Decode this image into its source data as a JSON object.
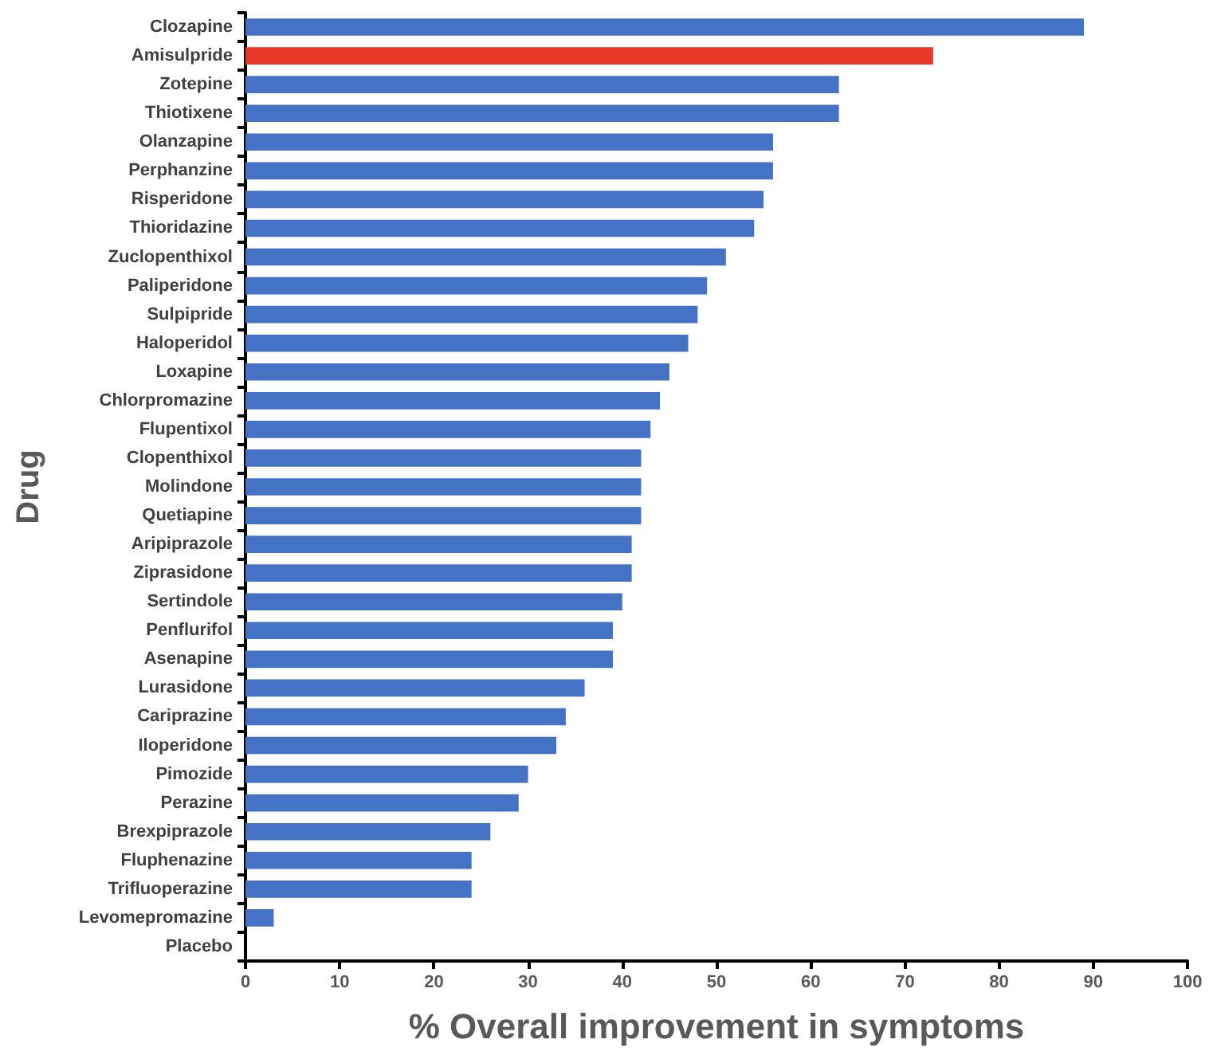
{
  "chart_data": {
    "type": "bar",
    "orientation": "horizontal",
    "xlabel": "% Overall improvement in symptoms",
    "ylabel": "Drug",
    "categories": [
      "Clozapine",
      "Amisulpride",
      "Zotepine",
      "Thiotixene",
      "Olanzapine",
      "Perphanzine",
      "Risperidone",
      "Thioridazine",
      "Zuclopenthixol",
      "Paliperidone",
      "Sulpipride",
      "Haloperidol",
      "Loxapine",
      "Chlorpromazine",
      "Flupentixol",
      "Clopenthixol",
      "Molindone",
      "Quetiapine",
      "Aripiprazole",
      "Ziprasidone",
      "Sertindole",
      "Penflurifol",
      "Asenapine",
      "Lurasidone",
      "Cariprazine",
      "Iloperidone",
      "Pimozide",
      "Perazine",
      "Brexpiprazole",
      "Fluphenazine",
      "Trifluoperazine",
      "Levomepromazine",
      "Placebo"
    ],
    "values": [
      89,
      73,
      63,
      63,
      56,
      56,
      55,
      54,
      51,
      49,
      48,
      47,
      45,
      44,
      43,
      42,
      42,
      42,
      41,
      41,
      40,
      39,
      39,
      36,
      34,
      33,
      30,
      29,
      26,
      24,
      24,
      3,
      0
    ],
    "colors": [
      "#4472c4",
      "#e8392a",
      "#4472c4",
      "#4472c4",
      "#4472c4",
      "#4472c4",
      "#4472c4",
      "#4472c4",
      "#4472c4",
      "#4472c4",
      "#4472c4",
      "#4472c4",
      "#4472c4",
      "#4472c4",
      "#4472c4",
      "#4472c4",
      "#4472c4",
      "#4472c4",
      "#4472c4",
      "#4472c4",
      "#4472c4",
      "#4472c4",
      "#4472c4",
      "#4472c4",
      "#4472c4",
      "#4472c4",
      "#4472c4",
      "#4472c4",
      "#4472c4",
      "#4472c4",
      "#4472c4",
      "#4472c4",
      "#4472c4"
    ],
    "xlim": [
      0,
      100
    ],
    "xticks": [
      0,
      10,
      20,
      30,
      40,
      50,
      60,
      70,
      80,
      90,
      100
    ],
    "grid": false
  }
}
